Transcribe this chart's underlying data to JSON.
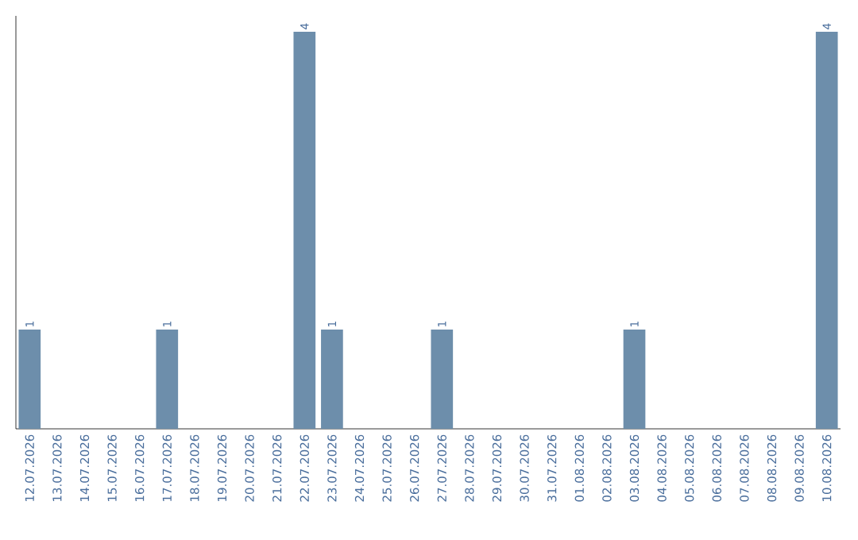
{
  "chart_data": {
    "type": "bar",
    "categories": [
      "12.07.2026",
      "13.07.2026",
      "14.07.2026",
      "15.07.2026",
      "16.07.2026",
      "17.07.2026",
      "18.07.2026",
      "19.07.2026",
      "20.07.2026",
      "21.07.2026",
      "22.07.2026",
      "23.07.2026",
      "24.07.2026",
      "25.07.2026",
      "26.07.2026",
      "27.07.2026",
      "28.07.2026",
      "29.07.2026",
      "30.07.2026",
      "31.07.2026",
      "01.08.2026",
      "02.08.2026",
      "03.08.2026",
      "04.08.2026",
      "05.08.2026",
      "06.08.2026",
      "07.08.2026",
      "08.08.2026",
      "09.08.2026",
      "10.08.2026"
    ],
    "values": [
      1,
      0,
      0,
      0,
      0,
      1,
      0,
      0,
      0,
      0,
      4,
      1,
      0,
      0,
      0,
      1,
      0,
      0,
      0,
      0,
      0,
      0,
      1,
      0,
      0,
      0,
      0,
      0,
      0,
      4
    ],
    "value_labels": [
      "1",
      null,
      null,
      null,
      null,
      "1",
      null,
      null,
      null,
      null,
      "4",
      "1",
      null,
      null,
      null,
      "1",
      null,
      null,
      null,
      null,
      null,
      null,
      "1",
      null,
      null,
      null,
      null,
      null,
      null,
      "4"
    ],
    "color": "#6d8eab"
  }
}
